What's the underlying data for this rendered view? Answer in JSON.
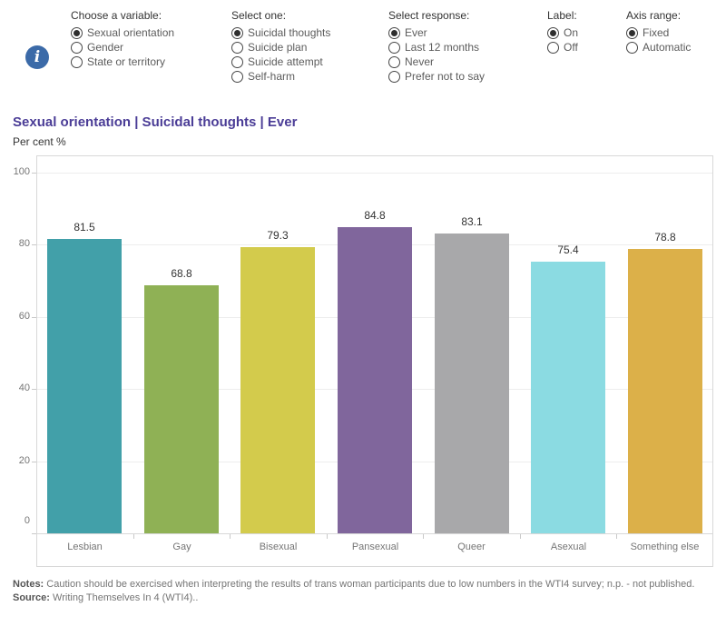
{
  "icons": {
    "info_glyph": "i"
  },
  "controls": {
    "groups": [
      {
        "label": "Choose a variable:",
        "options": [
          {
            "label": "Sexual orientation",
            "selected": true
          },
          {
            "label": "Gender",
            "selected": false
          },
          {
            "label": "State or territory",
            "selected": false
          }
        ]
      },
      {
        "label": "Select one:",
        "options": [
          {
            "label": "Suicidal thoughts",
            "selected": true
          },
          {
            "label": "Suicide plan",
            "selected": false
          },
          {
            "label": "Suicide attempt",
            "selected": false
          },
          {
            "label": "Self-harm",
            "selected": false
          }
        ]
      },
      {
        "label": "Select response:",
        "options": [
          {
            "label": "Ever",
            "selected": true
          },
          {
            "label": "Last 12 months",
            "selected": false
          },
          {
            "label": "Never",
            "selected": false
          },
          {
            "label": "Prefer not to say",
            "selected": false
          }
        ]
      },
      {
        "label": "Label:",
        "options": [
          {
            "label": "On",
            "selected": true
          },
          {
            "label": "Off",
            "selected": false
          }
        ]
      },
      {
        "label": "Axis range:",
        "options": [
          {
            "label": "Fixed",
            "selected": true
          },
          {
            "label": "Automatic",
            "selected": false
          }
        ]
      }
    ]
  },
  "header": {
    "title": "Sexual orientation | Suicidal thoughts | Ever",
    "subtitle": "Per cent %"
  },
  "chart_data": {
    "type": "bar",
    "title": "Sexual orientation | Suicidal thoughts | Ever",
    "ylabel": "Per cent %",
    "xlabel": "",
    "categories": [
      "Lesbian",
      "Gay",
      "Bisexual",
      "Pansexual",
      "Queer",
      "Asexual",
      "Something else"
    ],
    "values": [
      81.5,
      68.8,
      79.3,
      84.8,
      83.1,
      75.4,
      78.8
    ],
    "value_labels": [
      "81.5",
      "68.8",
      "79.3",
      "84.8",
      "83.1",
      "75.4",
      "78.8"
    ],
    "bar_colors": [
      "#42a0a9",
      "#8fb155",
      "#d3cb4c",
      "#80669c",
      "#a8a8aa",
      "#8bdbe2",
      "#dcb049"
    ],
    "ylim": [
      0,
      100
    ],
    "yticks": [
      "0",
      "20",
      "40",
      "60",
      "80",
      "100"
    ],
    "grid": true,
    "legend": "none"
  },
  "footer": {
    "notes_label": "Notes:",
    "notes_text": "Caution should be exercised when interpreting the results of trans woman participants due to low numbers in the WTI4 survey; n.p. - not published.",
    "source_label": "Source:",
    "source_text": "Writing Themselves In 4 (WTI4).."
  },
  "colors": {
    "title": "#4a3c96",
    "info_icon": "#3b6aa8",
    "selected_radio": "#2e2e2e",
    "axis_text": "#767676",
    "value_text": "#333333",
    "gridline": "#ededed",
    "plot_border": "#d8d8d8"
  }
}
